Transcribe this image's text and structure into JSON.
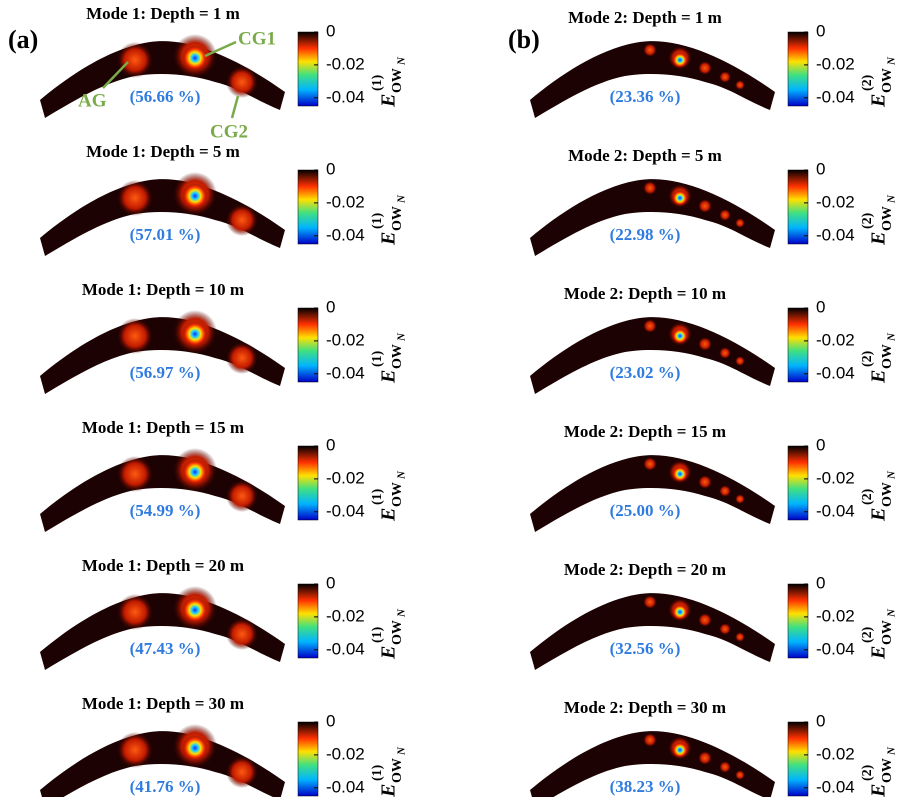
{
  "panel_labels": [
    "(a)",
    "(b)"
  ],
  "annotations": [
    "AG",
    "CG1",
    "CG2"
  ],
  "columns": [
    {
      "panels": [
        {
          "title": "Mode 1: Depth = 1 m",
          "variance": "(56.66 %)"
        },
        {
          "title": "Mode 1: Depth = 5 m",
          "variance": "(57.01 %)"
        },
        {
          "title": "Mode 1: Depth = 10 m",
          "variance": "(56.97 %)"
        },
        {
          "title": "Mode 1: Depth = 15 m",
          "variance": "(54.99 %)"
        },
        {
          "title": "Mode 1: Depth = 20 m",
          "variance": "(47.43 %)"
        },
        {
          "title": "Mode 1: Depth = 30 m",
          "variance": "(41.76 %)"
        }
      ],
      "colorbar": {
        "label_base": "E",
        "label_sub": "OW",
        "label_subsub": "N",
        "label_sup": "(1)",
        "lim": [
          -0.045,
          0
        ],
        "ticks": [
          0,
          -0.02,
          -0.04
        ]
      }
    },
    {
      "panels": [
        {
          "title": "Mode 2: Depth = 1 m",
          "variance": "(23.36 %)"
        },
        {
          "title": "Mode 2: Depth = 5 m",
          "variance": "(22.98 %)"
        },
        {
          "title": "Mode 2: Depth = 10 m",
          "variance": "(23.02 %)"
        },
        {
          "title": "Mode 2: Depth = 15 m",
          "variance": "(25.00 %)"
        },
        {
          "title": "Mode 2: Depth = 20 m",
          "variance": "(32.56 %)"
        },
        {
          "title": "Mode 2: Depth = 30 m",
          "variance": "(38.23 %)"
        }
      ],
      "colorbar": {
        "label_base": "E",
        "label_sub": "OW",
        "label_subsub": "N",
        "label_sup": "(2)",
        "lim": [
          -0.045,
          0
        ],
        "ticks": [
          0,
          -0.02,
          -0.04
        ]
      }
    }
  ]
}
